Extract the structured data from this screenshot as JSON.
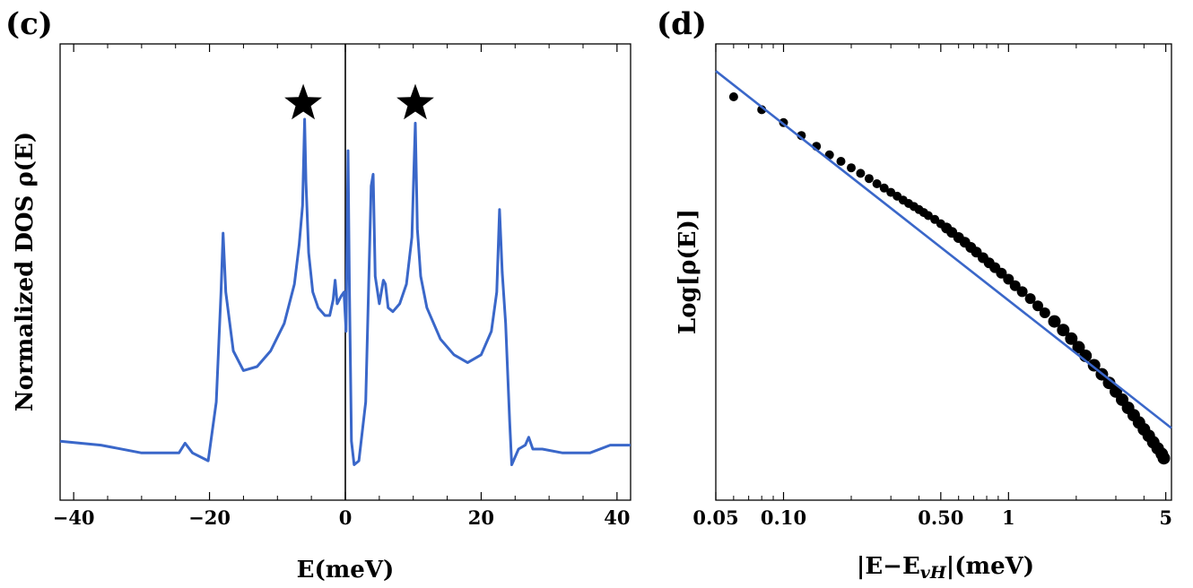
{
  "panels": [
    {
      "label": "(c)",
      "xlabel": "E(meV)",
      "ylabel": "Normalized DOS ρ(E)"
    },
    {
      "label": "(d)",
      "xlabel": "|E−E",
      "xlabel_sub": "vH",
      "xlabel_tail": "|(meV)",
      "ylabel": "Log[ρ(E)]"
    }
  ],
  "chart_data": [
    {
      "type": "line",
      "title": "",
      "xlabel": "E(meV)",
      "ylabel": "Normalized DOS ρ(E)",
      "xlim": [
        -42,
        42
      ],
      "ylim": [
        0,
        1
      ],
      "x_ticks": [
        -40,
        -20,
        0,
        20,
        40
      ],
      "x_tick_labels": [
        "−40",
        "−20",
        "0",
        "20",
        "40"
      ],
      "y_ticks_shown": false,
      "color": "#3a67c9",
      "vertical_line_x": 0,
      "series": [
        {
          "name": "DOS",
          "x": [
            -42,
            -36,
            -30,
            -24.5,
            -23.6,
            -22.5,
            -20.2,
            -19,
            -18.3,
            -18,
            -17.6,
            -16.5,
            -15,
            -13,
            -11,
            -9,
            -7.5,
            -6.8,
            -6.3,
            -6,
            -5.8,
            -5.4,
            -4.8,
            -4,
            -3,
            -2.3,
            -1.8,
            -1.5,
            -1.2,
            -0.6,
            -0.2,
            0.1,
            0.4,
            0.6,
            0.9,
            1.3,
            2,
            3,
            3.8,
            4.1,
            4.4,
            5,
            5.6,
            5.9,
            6.3,
            7,
            8,
            9,
            9.8,
            10.3,
            10.6,
            11.1,
            12,
            14,
            16,
            18,
            20,
            21.5,
            22.3,
            22.7,
            23.1,
            23.6,
            24.2,
            24.5,
            25.5,
            26.5,
            27,
            27.6,
            29,
            32,
            36,
            39,
            42
          ],
          "values": [
            0.1,
            0.09,
            0.07,
            0.07,
            0.095,
            0.07,
            0.05,
            0.2,
            0.48,
            0.63,
            0.48,
            0.33,
            0.28,
            0.29,
            0.33,
            0.4,
            0.5,
            0.6,
            0.7,
            0.92,
            0.76,
            0.58,
            0.48,
            0.44,
            0.42,
            0.42,
            0.46,
            0.51,
            0.45,
            0.47,
            0.48,
            0.38,
            0.84,
            0.5,
            0.1,
            0.04,
            0.05,
            0.2,
            0.75,
            0.78,
            0.52,
            0.45,
            0.51,
            0.5,
            0.44,
            0.43,
            0.45,
            0.5,
            0.62,
            0.91,
            0.64,
            0.52,
            0.44,
            0.36,
            0.32,
            0.3,
            0.32,
            0.38,
            0.48,
            0.69,
            0.53,
            0.4,
            0.15,
            0.04,
            0.08,
            0.09,
            0.11,
            0.08,
            0.08,
            0.07,
            0.07,
            0.09,
            0.09
          ]
        }
      ],
      "annotations": [
        {
          "type": "star",
          "x": -6.2,
          "y": 0.96
        },
        {
          "type": "star",
          "x": 10.3,
          "y": 0.96
        }
      ]
    },
    {
      "type": "scatter",
      "title": "",
      "xlabel": "|E−E_vH|(meV)",
      "ylabel": "Log[ρ(E)]",
      "x_scale": "log",
      "xlim": [
        0.05,
        5.3
      ],
      "ylim": [
        0,
        1
      ],
      "x_ticks": [
        0.05,
        0.1,
        0.5,
        1,
        5
      ],
      "x_tick_labels": [
        "0.05",
        "0.10",
        "0.50",
        "1",
        "5"
      ],
      "y_ticks_shown": false,
      "marker_color": "#000000",
      "fit_color": "#3a67c9",
      "series": [
        {
          "name": "data",
          "x": [
            0.06,
            0.08,
            0.1,
            0.12,
            0.14,
            0.16,
            0.18,
            0.2,
            0.22,
            0.24,
            0.26,
            0.28,
            0.3,
            0.32,
            0.34,
            0.36,
            0.38,
            0.4,
            0.42,
            0.44,
            0.47,
            0.5,
            0.53,
            0.56,
            0.6,
            0.64,
            0.68,
            0.72,
            0.77,
            0.82,
            0.87,
            0.93,
            1.0,
            1.07,
            1.15,
            1.25,
            1.35,
            1.45,
            1.6,
            1.75,
            1.9,
            2.05,
            2.2,
            2.4,
            2.6,
            2.8,
            3.0,
            3.2,
            3.4,
            3.6,
            3.8,
            4.0,
            4.2,
            4.4,
            4.6,
            4.8,
            4.9
          ],
          "values": [
            0.9,
            0.87,
            0.84,
            0.81,
            0.785,
            0.765,
            0.75,
            0.735,
            0.722,
            0.71,
            0.698,
            0.688,
            0.678,
            0.669,
            0.66,
            0.652,
            0.645,
            0.638,
            0.631,
            0.624,
            0.615,
            0.605,
            0.595,
            0.585,
            0.573,
            0.562,
            0.55,
            0.539,
            0.526,
            0.514,
            0.503,
            0.49,
            0.476,
            0.461,
            0.447,
            0.431,
            0.414,
            0.398,
            0.378,
            0.358,
            0.338,
            0.318,
            0.298,
            0.276,
            0.255,
            0.235,
            0.215,
            0.196,
            0.177,
            0.16,
            0.143,
            0.127,
            0.112,
            0.097,
            0.083,
            0.07,
            0.06
          ]
        },
        {
          "name": "fit",
          "x": [
            0.05,
            5.3
          ],
          "values": [
            0.96,
            0.13
          ]
        }
      ]
    }
  ]
}
